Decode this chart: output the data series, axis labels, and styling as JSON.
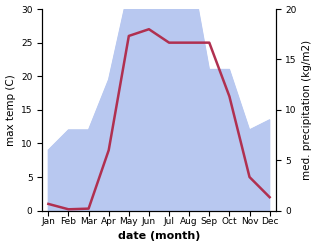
{
  "months": [
    "Jan",
    "Feb",
    "Mar",
    "Apr",
    "May",
    "Jun",
    "Jul",
    "Aug",
    "Sep",
    "Oct",
    "Nov",
    "Dec"
  ],
  "temperature": [
    1,
    0.2,
    0.3,
    9,
    26,
    27,
    25,
    25,
    25,
    17,
    5,
    2
  ],
  "precipitation": [
    6,
    8,
    8,
    13,
    22,
    27,
    30,
    25,
    14,
    14,
    8,
    9
  ],
  "precip_fill_color": "#b8c8f0",
  "temp_color": "#b03050",
  "left_ylim": [
    0,
    30
  ],
  "right_ylim": [
    0,
    20
  ],
  "left_yticks": [
    0,
    5,
    10,
    15,
    20,
    25,
    30
  ],
  "right_yticks": [
    0,
    5,
    10,
    15,
    20
  ],
  "xlabel": "date (month)",
  "ylabel_left": "max temp (C)",
  "ylabel_right": "med. precipitation (kg/m2)",
  "label_fontsize": 7.5,
  "tick_fontsize": 6.5,
  "xlabel_fontsize": 8,
  "linewidth": 1.8,
  "figsize": [
    3.18,
    2.47
  ],
  "dpi": 100
}
